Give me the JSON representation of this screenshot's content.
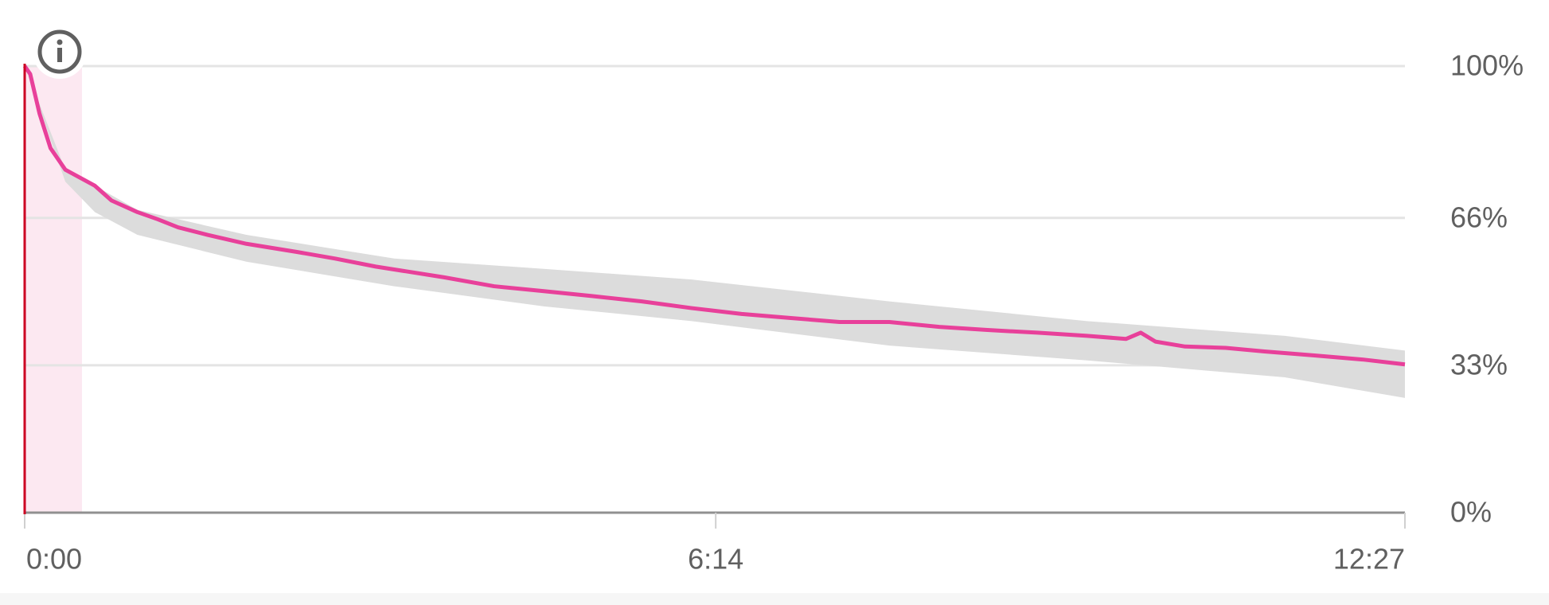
{
  "chart_data": {
    "type": "line",
    "xlim": [
      0,
      747
    ],
    "xticks": [
      {
        "value": 0,
        "label": "0:00"
      },
      {
        "value": 374,
        "label": "6:14"
      },
      {
        "value": 747,
        "label": "12:27"
      }
    ],
    "ylim": [
      0,
      100
    ],
    "yticks": [
      {
        "value": 0,
        "label": "0%"
      },
      {
        "value": 33,
        "label": "33%"
      },
      {
        "value": 66,
        "label": "66%"
      },
      {
        "value": 100,
        "label": "100%"
      }
    ],
    "grid": true,
    "series": [
      {
        "color": "#e8409a",
        "x": [
          0,
          3,
          8,
          14,
          22,
          38,
          47,
          61,
          72,
          83,
          99,
          120,
          147,
          168,
          190,
          227,
          254,
          281,
          307,
          334,
          361,
          388,
          414,
          441,
          468,
          495,
          521,
          548,
          575,
          596,
          604,
          612,
          628,
          650,
          671,
          698,
          724,
          747
        ],
        "values": [
          100,
          98.2,
          89.4,
          81.6,
          76.8,
          73.2,
          69.9,
          67.3,
          65.7,
          63.9,
          62.2,
          60.2,
          58.4,
          56.9,
          55.1,
          52.7,
          50.7,
          49.6,
          48.5,
          47.3,
          45.8,
          44.5,
          43.6,
          42.7,
          42.7,
          41.6,
          40.9,
          40.3,
          39.6,
          38.9,
          40.3,
          38.3,
          37.2,
          36.9,
          36.1,
          35.2,
          34.3,
          33.2
        ]
      }
    ],
    "band": {
      "color": "#dcdcdc",
      "x": [
        0,
        22,
        38,
        61,
        120,
        200,
        281,
        361,
        468,
        575,
        682,
        747
      ],
      "upper": [
        100,
        76.8,
        73.2,
        67.8,
        62.2,
        56.9,
        54.6,
        52.2,
        47.3,
        42.9,
        39.6,
        36.3
      ],
      "lower": [
        100,
        74.1,
        67.3,
        62.2,
        56.2,
        50.7,
        46.2,
        42.9,
        37.4,
        34.1,
        30.3,
        25.7
      ]
    }
  }
}
